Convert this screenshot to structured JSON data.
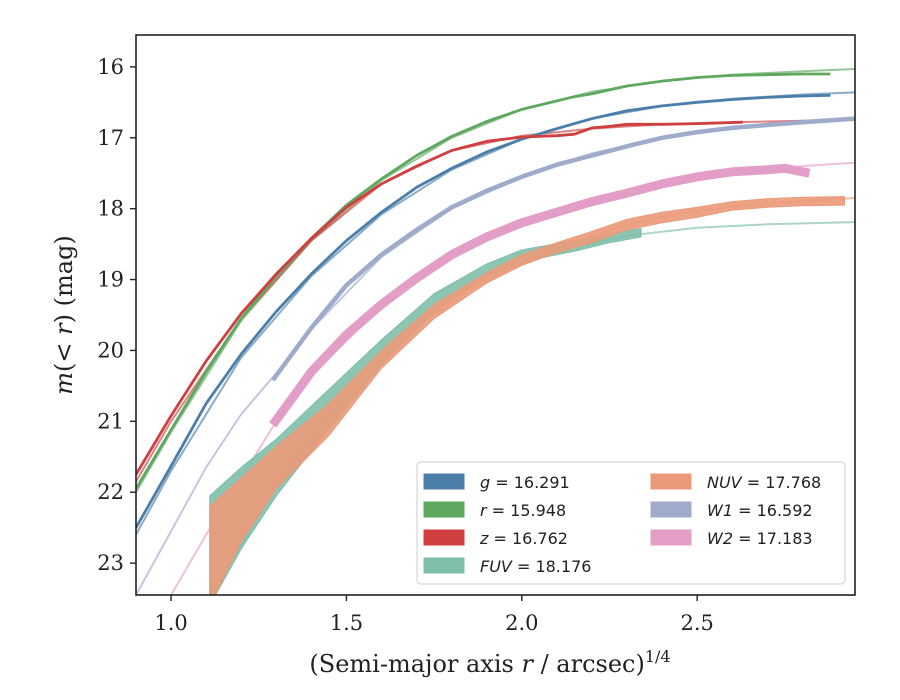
{
  "chart_data": {
    "type": "line",
    "xlabel": "(Semi-major axis r / arcsec)^1/4",
    "ylabel": "m(< r) (mag)",
    "xlim": [
      0.9,
      2.95
    ],
    "ylim": [
      23.45,
      15.55
    ],
    "y_inverted": true,
    "x_ticks": [
      1.0,
      1.5,
      2.0,
      2.5
    ],
    "x_tick_labels": [
      "1.0",
      "1.5",
      "2.0",
      "2.5"
    ],
    "y_ticks": [
      16,
      17,
      18,
      19,
      20,
      21,
      22,
      23
    ],
    "y_tick_labels": [
      "16",
      "17",
      "18",
      "19",
      "20",
      "21",
      "22",
      "23"
    ],
    "grid": false,
    "legend_position": "lower-right",
    "series": [
      {
        "name": "g = 16.291",
        "label_var": "g",
        "label_value": "= 16.291",
        "color": "#4c7eaa",
        "data": [
          [
            0.9,
            22.5
          ],
          [
            1.0,
            21.63
          ],
          [
            1.1,
            20.75
          ],
          [
            1.2,
            20.05
          ],
          [
            1.3,
            19.45
          ],
          [
            1.4,
            18.92
          ],
          [
            1.5,
            18.45
          ],
          [
            1.6,
            18.05
          ],
          [
            1.7,
            17.7
          ],
          [
            1.8,
            17.43
          ],
          [
            1.9,
            17.2
          ],
          [
            2.0,
            17.02
          ],
          [
            2.1,
            16.87
          ],
          [
            2.2,
            16.73
          ],
          [
            2.3,
            16.62
          ],
          [
            2.4,
            16.55
          ],
          [
            2.5,
            16.5
          ],
          [
            2.6,
            16.46
          ],
          [
            2.7,
            16.43
          ],
          [
            2.8,
            16.41
          ],
          [
            2.88,
            16.4
          ]
        ],
        "model": [
          [
            0.9,
            22.6
          ],
          [
            1.0,
            21.7
          ],
          [
            1.2,
            20.1
          ],
          [
            1.4,
            18.95
          ],
          [
            1.6,
            18.08
          ],
          [
            1.8,
            17.45
          ],
          [
            2.0,
            17.02
          ],
          [
            2.2,
            16.73
          ],
          [
            2.4,
            16.55
          ],
          [
            2.6,
            16.45
          ],
          [
            2.8,
            16.39
          ],
          [
            2.95,
            16.36
          ]
        ]
      },
      {
        "name": "r = 15.948",
        "label_var": "r",
        "label_value": "= 15.948",
        "color": "#5ea860",
        "data": [
          [
            0.9,
            21.95
          ],
          [
            1.0,
            21.12
          ],
          [
            1.1,
            20.3
          ],
          [
            1.2,
            19.55
          ],
          [
            1.3,
            18.95
          ],
          [
            1.4,
            18.42
          ],
          [
            1.5,
            17.95
          ],
          [
            1.6,
            17.58
          ],
          [
            1.7,
            17.25
          ],
          [
            1.8,
            16.98
          ],
          [
            1.9,
            16.77
          ],
          [
            2.0,
            16.6
          ],
          [
            2.1,
            16.48
          ],
          [
            2.15,
            16.42
          ],
          [
            2.2,
            16.38
          ],
          [
            2.3,
            16.27
          ],
          [
            2.4,
            16.2
          ],
          [
            2.5,
            16.15
          ],
          [
            2.6,
            16.12
          ],
          [
            2.7,
            16.11
          ],
          [
            2.8,
            16.1
          ],
          [
            2.88,
            16.1
          ]
        ],
        "model": [
          [
            0.9,
            22.0
          ],
          [
            1.0,
            21.15
          ],
          [
            1.2,
            19.58
          ],
          [
            1.4,
            18.45
          ],
          [
            1.6,
            17.6
          ],
          [
            1.8,
            17.0
          ],
          [
            2.0,
            16.6
          ],
          [
            2.2,
            16.35
          ],
          [
            2.4,
            16.2
          ],
          [
            2.6,
            16.11
          ],
          [
            2.8,
            16.06
          ],
          [
            2.95,
            16.03
          ]
        ]
      },
      {
        "name": "z = 16.762",
        "label_var": "z",
        "label_value": "= 16.762",
        "color": "#d03f3f",
        "data": [
          [
            0.9,
            21.75
          ],
          [
            1.0,
            20.92
          ],
          [
            1.1,
            20.15
          ],
          [
            1.2,
            19.48
          ],
          [
            1.3,
            18.92
          ],
          [
            1.4,
            18.42
          ],
          [
            1.5,
            17.98
          ],
          [
            1.6,
            17.65
          ],
          [
            1.7,
            17.4
          ],
          [
            1.8,
            17.18
          ],
          [
            1.9,
            17.05
          ],
          [
            2.0,
            16.99
          ],
          [
            2.05,
            16.98
          ],
          [
            2.1,
            16.97
          ],
          [
            2.15,
            16.95
          ],
          [
            2.2,
            16.86
          ],
          [
            2.25,
            16.84
          ],
          [
            2.3,
            16.81
          ],
          [
            2.4,
            16.81
          ],
          [
            2.5,
            16.8
          ],
          [
            2.63,
            16.78
          ]
        ],
        "model": [
          [
            0.9,
            21.85
          ],
          [
            1.0,
            21.0
          ],
          [
            1.2,
            19.55
          ],
          [
            1.4,
            18.45
          ],
          [
            1.6,
            17.65
          ],
          [
            1.8,
            17.18
          ],
          [
            2.0,
            16.97
          ],
          [
            2.2,
            16.87
          ],
          [
            2.4,
            16.81
          ],
          [
            2.6,
            16.78
          ],
          [
            2.8,
            16.76
          ],
          [
            2.95,
            16.75
          ]
        ]
      },
      {
        "name": "FUV = 18.176",
        "label_var": "FUV",
        "label_value": "= 18.176",
        "color": "#7fbfaa",
        "band_lower": [
          [
            1.11,
            23.6
          ],
          [
            1.2,
            22.8
          ],
          [
            1.3,
            22.05
          ],
          [
            1.45,
            21.1
          ],
          [
            1.6,
            20.2
          ],
          [
            1.75,
            19.45
          ],
          [
            1.9,
            18.95
          ],
          [
            2.0,
            18.75
          ],
          [
            2.15,
            18.6
          ],
          [
            2.25,
            18.48
          ],
          [
            2.34,
            18.4
          ]
        ],
        "band_upper": [
          [
            1.11,
            22.05
          ],
          [
            1.2,
            21.65
          ],
          [
            1.3,
            21.25
          ],
          [
            1.45,
            20.55
          ],
          [
            1.6,
            19.85
          ],
          [
            1.75,
            19.2
          ],
          [
            1.9,
            18.78
          ],
          [
            2.0,
            18.58
          ],
          [
            2.15,
            18.45
          ],
          [
            2.25,
            18.35
          ],
          [
            2.34,
            18.28
          ]
        ],
        "model": [
          [
            1.11,
            23.5
          ],
          [
            1.3,
            21.9
          ],
          [
            1.5,
            20.6
          ],
          [
            1.7,
            19.6
          ],
          [
            1.9,
            18.95
          ],
          [
            2.1,
            18.6
          ],
          [
            2.3,
            18.38
          ],
          [
            2.5,
            18.27
          ],
          [
            2.7,
            18.22
          ],
          [
            2.95,
            18.19
          ]
        ]
      },
      {
        "name": "NUV = 17.768",
        "label_var": "NUV",
        "label_value": "= 17.768",
        "color": "#eb9a79",
        "band_lower": [
          [
            1.11,
            23.6
          ],
          [
            1.2,
            22.7
          ],
          [
            1.3,
            21.95
          ],
          [
            1.45,
            21.2
          ],
          [
            1.6,
            20.25
          ],
          [
            1.75,
            19.55
          ],
          [
            1.9,
            19.05
          ],
          [
            2.0,
            18.8
          ],
          [
            2.1,
            18.62
          ],
          [
            2.2,
            18.48
          ],
          [
            2.3,
            18.3
          ],
          [
            2.4,
            18.2
          ],
          [
            2.5,
            18.12
          ],
          [
            2.6,
            18.02
          ],
          [
            2.7,
            17.98
          ],
          [
            2.8,
            17.96
          ],
          [
            2.92,
            17.95
          ]
        ],
        "band_upper": [
          [
            1.11,
            22.2
          ],
          [
            1.2,
            21.8
          ],
          [
            1.3,
            21.35
          ],
          [
            1.45,
            20.75
          ],
          [
            1.6,
            20.0
          ],
          [
            1.75,
            19.35
          ],
          [
            1.9,
            18.9
          ],
          [
            2.0,
            18.65
          ],
          [
            2.1,
            18.48
          ],
          [
            2.2,
            18.32
          ],
          [
            2.3,
            18.15
          ],
          [
            2.4,
            18.05
          ],
          [
            2.5,
            17.98
          ],
          [
            2.6,
            17.9
          ],
          [
            2.7,
            17.86
          ],
          [
            2.8,
            17.84
          ],
          [
            2.92,
            17.83
          ]
        ],
        "model": [
          [
            1.11,
            23.4
          ],
          [
            1.3,
            21.75
          ],
          [
            1.5,
            20.55
          ],
          [
            1.7,
            19.65
          ],
          [
            1.9,
            19.0
          ],
          [
            2.1,
            18.55
          ],
          [
            2.3,
            18.22
          ],
          [
            2.5,
            18.02
          ],
          [
            2.7,
            17.92
          ],
          [
            2.95,
            17.85
          ]
        ]
      },
      {
        "name": "W1 = 16.592",
        "label_var": "W1",
        "label_value": "= 16.592",
        "color": "#9eabcb",
        "data": [
          [
            1.29,
            20.42
          ],
          [
            1.4,
            19.68
          ],
          [
            1.5,
            19.08
          ],
          [
            1.6,
            18.65
          ],
          [
            1.7,
            18.3
          ],
          [
            1.8,
            17.98
          ],
          [
            1.9,
            17.75
          ],
          [
            2.0,
            17.55
          ],
          [
            2.1,
            17.38
          ],
          [
            2.2,
            17.25
          ],
          [
            2.3,
            17.12
          ],
          [
            2.4,
            17.0
          ],
          [
            2.5,
            16.92
          ],
          [
            2.6,
            16.86
          ],
          [
            2.7,
            16.82
          ],
          [
            2.8,
            16.78
          ],
          [
            2.95,
            16.73
          ]
        ],
        "model": [
          [
            0.9,
            23.45
          ],
          [
            1.0,
            22.55
          ],
          [
            1.1,
            21.65
          ],
          [
            1.2,
            20.9
          ],
          [
            1.3,
            20.32
          ],
          [
            1.4,
            19.7
          ],
          [
            1.6,
            18.68
          ],
          [
            1.8,
            18.0
          ],
          [
            2.0,
            17.55
          ],
          [
            2.2,
            17.22
          ],
          [
            2.4,
            17.0
          ],
          [
            2.6,
            16.85
          ],
          [
            2.8,
            16.76
          ],
          [
            2.95,
            16.72
          ]
        ]
      },
      {
        "name": "W2 = 17.183",
        "label_var": "W2",
        "label_value": "= 17.183",
        "color": "#e39ec7",
        "data": [
          [
            1.29,
            21.05
          ],
          [
            1.4,
            20.3
          ],
          [
            1.5,
            19.78
          ],
          [
            1.6,
            19.35
          ],
          [
            1.7,
            18.98
          ],
          [
            1.8,
            18.65
          ],
          [
            1.9,
            18.4
          ],
          [
            2.0,
            18.2
          ],
          [
            2.1,
            18.05
          ],
          [
            2.2,
            17.9
          ],
          [
            2.3,
            17.78
          ],
          [
            2.4,
            17.65
          ],
          [
            2.5,
            17.55
          ],
          [
            2.6,
            17.48
          ],
          [
            2.7,
            17.45
          ],
          [
            2.75,
            17.43
          ],
          [
            2.8,
            17.48
          ],
          [
            2.82,
            17.5
          ]
        ],
        "model": [
          [
            1.0,
            23.45
          ],
          [
            1.1,
            22.6
          ],
          [
            1.2,
            21.8
          ],
          [
            1.3,
            21.0
          ],
          [
            1.4,
            20.35
          ],
          [
            1.6,
            19.38
          ],
          [
            1.8,
            18.68
          ],
          [
            2.0,
            18.2
          ],
          [
            2.2,
            17.88
          ],
          [
            2.4,
            17.65
          ],
          [
            2.6,
            17.5
          ],
          [
            2.8,
            17.4
          ],
          [
            2.95,
            17.35
          ]
        ]
      }
    ]
  }
}
